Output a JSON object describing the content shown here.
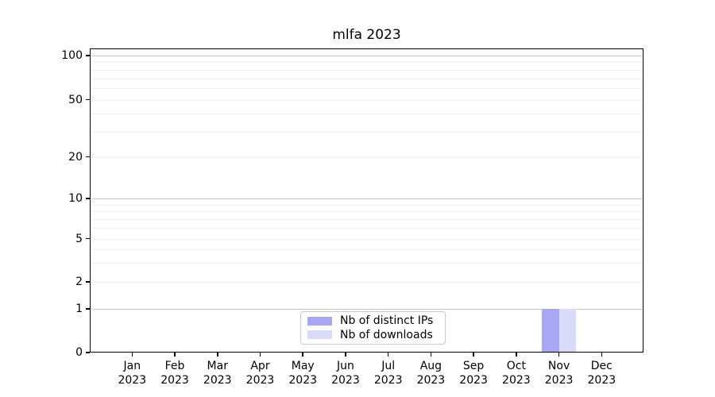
{
  "chart_data": {
    "type": "bar",
    "title": "mlfa 2023",
    "categories": [
      "Jan 2023",
      "Feb 2023",
      "Mar 2023",
      "Apr 2023",
      "May 2023",
      "Jun 2023",
      "Jul 2023",
      "Aug 2023",
      "Sep 2023",
      "Oct 2023",
      "Nov 2023",
      "Dec 2023"
    ],
    "series": [
      {
        "name": "Nb of distinct IPs",
        "color": "#a7a7f4",
        "values": [
          0,
          0,
          0,
          0,
          0,
          0,
          0,
          0,
          0,
          0,
          1,
          0
        ]
      },
      {
        "name": "Nb of downloads",
        "color": "#d9d9f8",
        "values": [
          0,
          0,
          0,
          0,
          0,
          0,
          0,
          0,
          0,
          0,
          1,
          0
        ]
      }
    ],
    "xlabel": "",
    "ylabel": "",
    "y_axis": {
      "scale": "symlog-like",
      "ticks": [
        0,
        1,
        2,
        5,
        10,
        20,
        50,
        100
      ],
      "decade_ticks": [
        1,
        10,
        100
      ],
      "minor_ticks": [
        3,
        4,
        6,
        7,
        8,
        9,
        30,
        40,
        60,
        70,
        80,
        90
      ],
      "ylim": [
        0,
        112
      ]
    },
    "grid": "horizontal, major decades darker + faint minors",
    "legend": {
      "position": "lower center inside plot",
      "entries": [
        "Nb of distinct IPs",
        "Nb of downloads"
      ]
    }
  },
  "colors": {
    "background": "#ffffff",
    "spine": "#000000",
    "grid_major": "#c8c8c8",
    "grid_minor": "#efefef",
    "text": "#000000",
    "legend_border": "#c9c9c9"
  }
}
